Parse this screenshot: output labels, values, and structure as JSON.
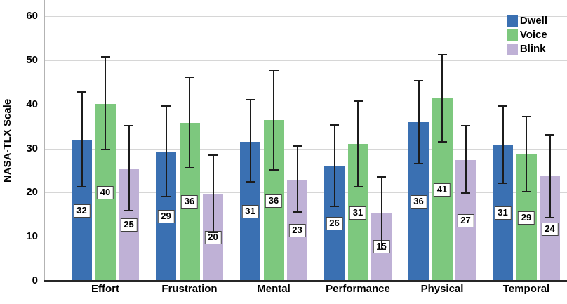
{
  "chart_data": {
    "type": "bar",
    "title": "",
    "xlabel": "",
    "ylabel": "NASA-TLX Scale",
    "categories": [
      "Effort",
      "Frustration",
      "Mental",
      "Performance",
      "Physical",
      "Temporal"
    ],
    "series": [
      {
        "name": "Dwell",
        "color": "#3a70b2",
        "values": [
          31.9,
          29.3,
          31.5,
          26.1,
          36.0,
          30.8
        ],
        "labels": [
          32,
          29,
          31,
          26,
          36,
          31
        ],
        "error_low": [
          21.2,
          19.0,
          22.3,
          16.8,
          26.5,
          22.0
        ],
        "error_high": [
          43.0,
          39.8,
          41.3,
          35.5,
          45.5,
          39.8
        ]
      },
      {
        "name": "Voice",
        "color": "#7dc87e",
        "values": [
          40.1,
          35.9,
          36.4,
          31.0,
          41.4,
          28.7
        ],
        "labels": [
          40,
          36,
          36,
          31,
          41,
          29
        ],
        "error_low": [
          29.6,
          25.5,
          25.0,
          21.2,
          31.3,
          20.0
        ],
        "error_high": [
          50.9,
          46.4,
          48.0,
          40.9,
          51.5,
          37.4
        ]
      },
      {
        "name": "Blink",
        "color": "#bfb1d6",
        "values": [
          25.4,
          19.7,
          23.0,
          15.5,
          27.4,
          23.7
        ],
        "labels": [
          25,
          20,
          23,
          15,
          27,
          24
        ],
        "error_low": [
          15.8,
          10.9,
          15.4,
          7.0,
          19.7,
          14.1
        ],
        "error_high": [
          35.4,
          28.7,
          30.7,
          23.7,
          35.3,
          33.3
        ]
      }
    ],
    "yticks": [
      0,
      10,
      20,
      30,
      40,
      50,
      60
    ],
    "ylim": [
      0,
      63.7
    ],
    "grid": true,
    "error_bars": true,
    "value_labels": "boxed integers centered at half bar height",
    "legend_position": "top-right"
  },
  "colors": {
    "grid": "#d6d6d6",
    "y_axis_line": "#b3b3b3",
    "baseline": "#262626",
    "error_bar": "#1c1c1c",
    "value_label_border": "#404040",
    "background": "#ffffff",
    "text": "#000000"
  }
}
